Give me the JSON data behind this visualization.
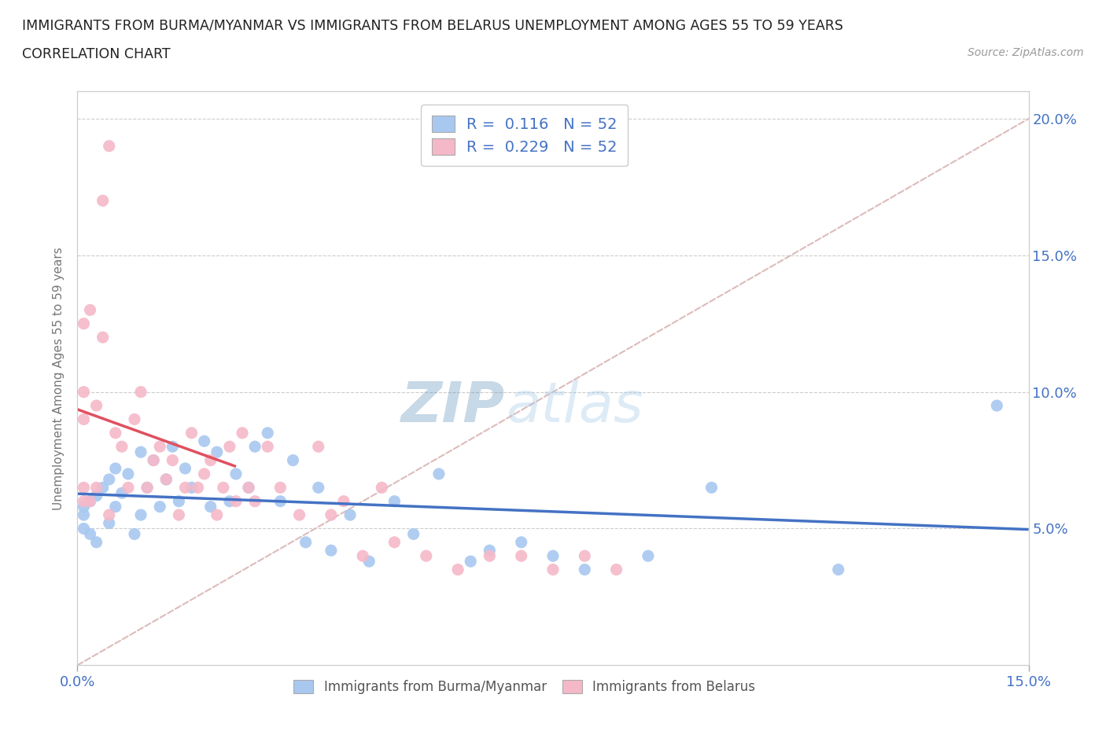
{
  "title_line1": "IMMIGRANTS FROM BURMA/MYANMAR VS IMMIGRANTS FROM BELARUS UNEMPLOYMENT AMONG AGES 55 TO 59 YEARS",
  "title_line2": "CORRELATION CHART",
  "source": "Source: ZipAtlas.com",
  "ylabel": "Unemployment Among Ages 55 to 59 years",
  "xlim": [
    0.0,
    0.15
  ],
  "ylim": [
    0.0,
    0.21
  ],
  "yticks": [
    0.05,
    0.1,
    0.15,
    0.2
  ],
  "ytick_labels": [
    "5.0%",
    "10.0%",
    "15.0%",
    "20.0%"
  ],
  "xtick_positions": [
    0.0,
    0.15
  ],
  "xtick_labels": [
    "0.0%",
    "15.0%"
  ],
  "color_burma": "#a8c8f0",
  "color_belarus": "#f5b8c8",
  "trendline_burma": "#4472c4",
  "trendline_belarus": "#e05060",
  "diagonal_color": "#ddbbbb",
  "R_burma": 0.116,
  "N_burma": 52,
  "R_belarus": 0.229,
  "N_belarus": 52,
  "watermark_zip": "ZIP",
  "watermark_atlas": "atlas",
  "legend_label_burma": "Immigrants from Burma/Myanmar",
  "legend_label_belarus": "Immigrants from Belarus",
  "burma_x": [
    0.001,
    0.001,
    0.001,
    0.002,
    0.002,
    0.003,
    0.003,
    0.004,
    0.005,
    0.005,
    0.006,
    0.006,
    0.007,
    0.008,
    0.009,
    0.01,
    0.01,
    0.011,
    0.012,
    0.013,
    0.014,
    0.015,
    0.016,
    0.017,
    0.018,
    0.02,
    0.021,
    0.022,
    0.024,
    0.025,
    0.027,
    0.028,
    0.03,
    0.032,
    0.034,
    0.036,
    0.038,
    0.04,
    0.043,
    0.046,
    0.05,
    0.053,
    0.057,
    0.062,
    0.065,
    0.07,
    0.075,
    0.08,
    0.09,
    0.1,
    0.12,
    0.145
  ],
  "burma_y": [
    0.055,
    0.05,
    0.058,
    0.06,
    0.048,
    0.062,
    0.045,
    0.065,
    0.052,
    0.068,
    0.058,
    0.072,
    0.063,
    0.07,
    0.048,
    0.078,
    0.055,
    0.065,
    0.075,
    0.058,
    0.068,
    0.08,
    0.06,
    0.072,
    0.065,
    0.082,
    0.058,
    0.078,
    0.06,
    0.07,
    0.065,
    0.08,
    0.085,
    0.06,
    0.075,
    0.045,
    0.065,
    0.042,
    0.055,
    0.038,
    0.06,
    0.048,
    0.07,
    0.038,
    0.042,
    0.045,
    0.04,
    0.035,
    0.04,
    0.065,
    0.035,
    0.095
  ],
  "belarus_x": [
    0.001,
    0.001,
    0.001,
    0.001,
    0.001,
    0.002,
    0.002,
    0.003,
    0.003,
    0.004,
    0.004,
    0.005,
    0.005,
    0.006,
    0.007,
    0.008,
    0.009,
    0.01,
    0.011,
    0.012,
    0.013,
    0.014,
    0.015,
    0.016,
    0.017,
    0.018,
    0.019,
    0.02,
    0.021,
    0.022,
    0.023,
    0.024,
    0.025,
    0.026,
    0.027,
    0.028,
    0.03,
    0.032,
    0.035,
    0.038,
    0.04,
    0.042,
    0.045,
    0.048,
    0.05,
    0.055,
    0.06,
    0.065,
    0.07,
    0.075,
    0.08,
    0.085
  ],
  "belarus_y": [
    0.06,
    0.065,
    0.09,
    0.1,
    0.125,
    0.06,
    0.13,
    0.065,
    0.095,
    0.12,
    0.17,
    0.19,
    0.055,
    0.085,
    0.08,
    0.065,
    0.09,
    0.1,
    0.065,
    0.075,
    0.08,
    0.068,
    0.075,
    0.055,
    0.065,
    0.085,
    0.065,
    0.07,
    0.075,
    0.055,
    0.065,
    0.08,
    0.06,
    0.085,
    0.065,
    0.06,
    0.08,
    0.065,
    0.055,
    0.08,
    0.055,
    0.06,
    0.04,
    0.065,
    0.045,
    0.04,
    0.035,
    0.04,
    0.04,
    0.035,
    0.04,
    0.035
  ]
}
